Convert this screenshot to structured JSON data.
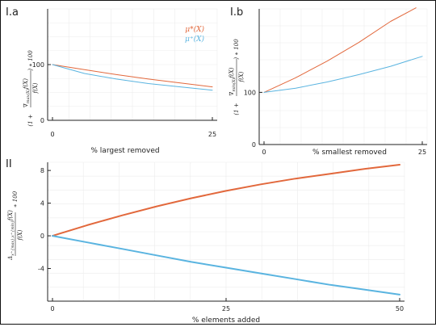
{
  "colors": {
    "mu_star": "#e2683c",
    "mu_plus": "#5ab4e0",
    "axis": "#222222",
    "grid": "#ececec"
  },
  "chart_data": [
    {
      "id": "Ia",
      "type": "line",
      "panel_label": "I.a",
      "xlabel": "% largest removed",
      "ylabel": "(1 + ∇_{max(X)} f(X) / f(X)) * 100",
      "xlim": [
        0,
        25
      ],
      "ylim": [
        0,
        200
      ],
      "xticks": [
        0,
        25
      ],
      "yticks": [
        0,
        100
      ],
      "grid": true,
      "legend_position": "top-right",
      "series": [
        {
          "name": "μ*(X)",
          "color": "#e2683c",
          "x": [
            0,
            5,
            10,
            15,
            20,
            25
          ],
          "y": [
            100,
            91,
            82,
            74,
            67,
            60
          ]
        },
        {
          "name": "μ⁺(X)",
          "color": "#5ab4e0",
          "x": [
            0,
            5,
            10,
            15,
            20,
            25
          ],
          "y": [
            100,
            84,
            74,
            66,
            60,
            54
          ]
        }
      ]
    },
    {
      "id": "Ib",
      "type": "line",
      "panel_label": "I.b",
      "xlabel": "% smallest removed",
      "ylabel": "(1 + ∇_{min(X)} f(X) / f(X)) * 100",
      "xlim": [
        0,
        25
      ],
      "ylim": [
        0,
        260
      ],
      "xticks": [
        0,
        25
      ],
      "yticks": [
        0,
        100
      ],
      "grid": true,
      "series": [
        {
          "name": "μ*(X)",
          "color": "#e2683c",
          "x": [
            0,
            5,
            10,
            15,
            20,
            24
          ],
          "y": [
            100,
            128,
            160,
            196,
            236,
            262
          ]
        },
        {
          "name": "μ⁺(X)",
          "color": "#5ab4e0",
          "x": [
            0,
            5,
            10,
            15,
            20,
            25
          ],
          "y": [
            100,
            108,
            120,
            134,
            150,
            169
          ]
        }
      ]
    },
    {
      "id": "II",
      "type": "line",
      "panel_label": "II",
      "xlabel": "% elements added",
      "ylabel": "Δ_{x^{max},x^{min}} f(X) / f(X) * 100",
      "xlim": [
        0,
        50
      ],
      "ylim": [
        -8,
        9
      ],
      "xticks": [
        0,
        25,
        50
      ],
      "yticks": [
        8,
        4,
        0,
        -4
      ],
      "grid": true,
      "series": [
        {
          "name": "μ*(X)",
          "color": "#e2683c",
          "x": [
            0,
            5,
            10,
            15,
            20,
            25,
            30,
            35,
            40,
            45,
            50
          ],
          "y": [
            0,
            1.3,
            2.5,
            3.6,
            4.6,
            5.5,
            6.3,
            7.0,
            7.6,
            8.2,
            8.7
          ]
        },
        {
          "name": "μ⁺(X)",
          "color": "#5ab4e0",
          "x": [
            0,
            5,
            10,
            15,
            20,
            25,
            30,
            35,
            40,
            45,
            50
          ],
          "y": [
            0,
            -0.8,
            -1.6,
            -2.4,
            -3.2,
            -3.9,
            -4.6,
            -5.3,
            -6.0,
            -6.6,
            -7.2
          ]
        }
      ]
    }
  ]
}
